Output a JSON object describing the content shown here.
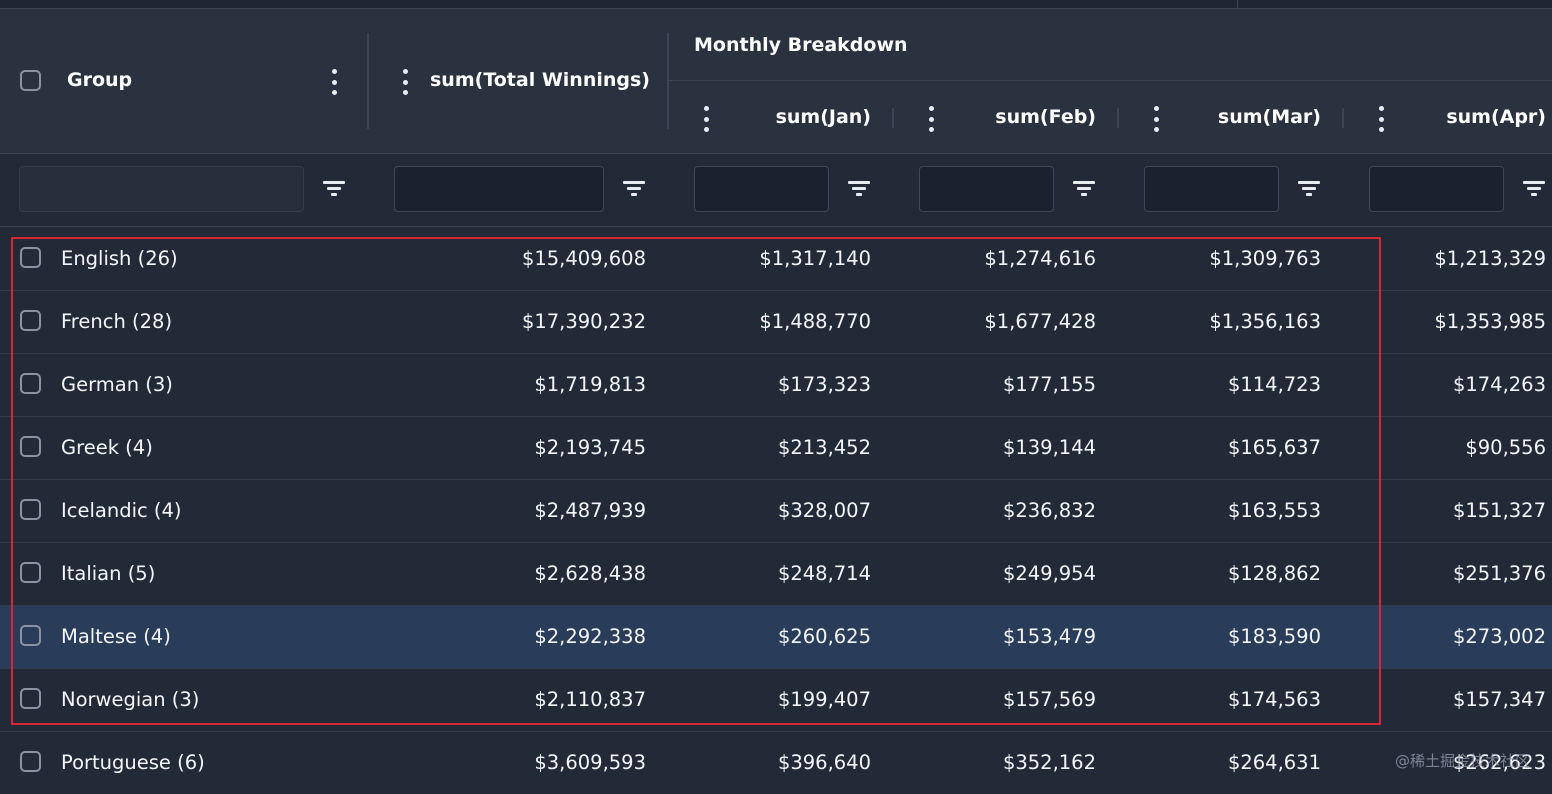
{
  "header": {
    "group_label": "Group",
    "total_label": "sum(Total Winnings)",
    "monthly_group_label": "Monthly Breakdown",
    "months": [
      "sum(Jan)",
      "sum(Feb)",
      "sum(Mar)",
      "sum(Apr)"
    ]
  },
  "filters": {
    "group": "",
    "total": "",
    "jan": "",
    "feb": "",
    "mar": "",
    "apr": ""
  },
  "rows": [
    {
      "group": "English (26)",
      "total": "$15,409,608",
      "jan": "$1,317,140",
      "feb": "$1,274,616",
      "mar": "$1,309,763",
      "apr": "$1,213,329",
      "selected": false
    },
    {
      "group": "French (28)",
      "total": "$17,390,232",
      "jan": "$1,488,770",
      "feb": "$1,677,428",
      "mar": "$1,356,163",
      "apr": "$1,353,985",
      "selected": false
    },
    {
      "group": "German (3)",
      "total": "$1,719,813",
      "jan": "$173,323",
      "feb": "$177,155",
      "mar": "$114,723",
      "apr": "$174,263",
      "selected": false
    },
    {
      "group": "Greek (4)",
      "total": "$2,193,745",
      "jan": "$213,452",
      "feb": "$139,144",
      "mar": "$165,637",
      "apr": "$90,556",
      "selected": false
    },
    {
      "group": "Icelandic (4)",
      "total": "$2,487,939",
      "jan": "$328,007",
      "feb": "$236,832",
      "mar": "$163,553",
      "apr": "$151,327",
      "selected": false
    },
    {
      "group": "Italian (5)",
      "total": "$2,628,438",
      "jan": "$248,714",
      "feb": "$249,954",
      "mar": "$128,862",
      "apr": "$251,376",
      "selected": false
    },
    {
      "group": "Maltese (4)",
      "total": "$2,292,338",
      "jan": "$260,625",
      "feb": "$153,479",
      "mar": "$183,590",
      "apr": "$273,002",
      "selected": true
    },
    {
      "group": "Norwegian (3)",
      "total": "$2,110,837",
      "jan": "$199,407",
      "feb": "$157,569",
      "mar": "$174,563",
      "apr": "$157,347",
      "selected": false
    },
    {
      "group": "Portuguese (6)",
      "total": "$3,609,593",
      "jan": "$396,640",
      "feb": "$352,162",
      "mar": "$264,631",
      "apr": "$262,623",
      "selected": false
    }
  ],
  "annotation": {
    "color": "#d82732"
  },
  "watermark": "@稀土掘金技术社区",
  "colors": {
    "background": "#222a38",
    "header": "#2a3240",
    "selected_row": "#293c5a"
  }
}
